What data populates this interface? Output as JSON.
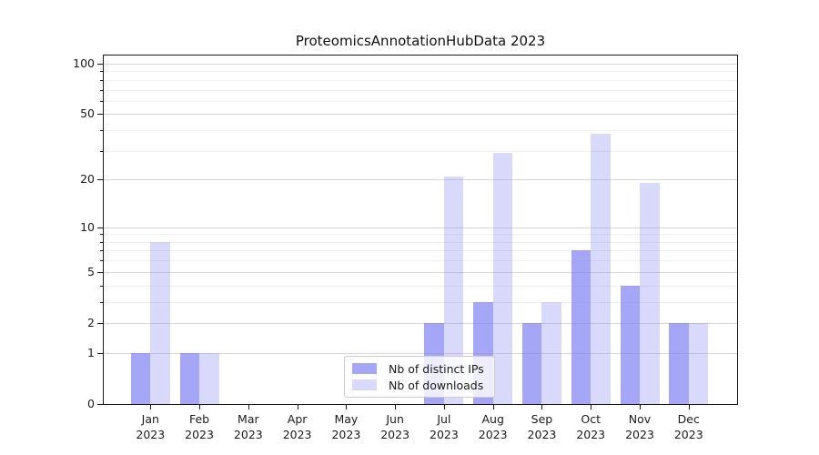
{
  "chart_data": {
    "type": "bar",
    "title": "ProteomicsAnnotationHubData 2023",
    "categories": [
      "Jan",
      "Feb",
      "Mar",
      "Apr",
      "May",
      "Jun",
      "Jul",
      "Aug",
      "Sep",
      "Oct",
      "Nov",
      "Dec"
    ],
    "year_label": "2023",
    "series": [
      {
        "name": "Nb of distinct IPs",
        "values": [
          1,
          1,
          0,
          0,
          0,
          0,
          2,
          3,
          2,
          7,
          4,
          2
        ],
        "color": "rgba(128,128,242,0.7)"
      },
      {
        "name": "Nb of downloads",
        "values": [
          8,
          1,
          0,
          0,
          0,
          0,
          21,
          29,
          3,
          38,
          19,
          2
        ],
        "color": "rgba(128,128,242,0.3)"
      }
    ],
    "yticks": [
      100,
      50,
      20,
      10,
      5,
      2,
      1,
      0
    ],
    "minor_gridlines": [
      3,
      4,
      6,
      7,
      8,
      9,
      30,
      40,
      60,
      70,
      80,
      90
    ],
    "major_gridlines": [
      1,
      2,
      5,
      10,
      20,
      50,
      100
    ],
    "scale": "log10(value+1)",
    "ylim": [
      0,
      112
    ],
    "grid": true,
    "legend_position": "lower-center",
    "colors": {
      "series_base": "#8080f2",
      "grid_major": "#d8d8d8",
      "grid_minor": "#efefef",
      "axis": "#1a1a1a"
    }
  }
}
